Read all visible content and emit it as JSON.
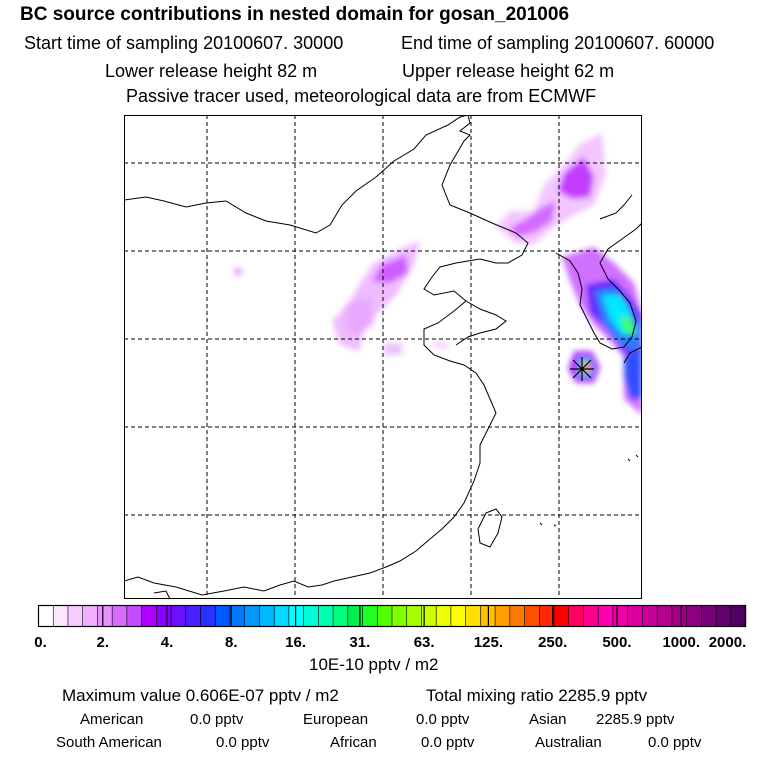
{
  "header": {
    "title": "BC  source contributions in nested domain for gosan_201006",
    "start_label": "Start time of sampling 20100607. 30000",
    "end_label": "End time of sampling 20100607. 60000",
    "lower_release": "Lower release height   82 m",
    "upper_release": "Upper release height   62 m",
    "note": "Passive tracer used, meteorological data are from ECMWF"
  },
  "colorbar": {
    "ticks": [
      "0.",
      "2.",
      "4.",
      "8.",
      "16.",
      "31.",
      "63.",
      "125.",
      "250.",
      "500.",
      "1000.",
      "2000."
    ],
    "colors": [
      "#ffffff",
      "#fbe6ff",
      "#f6ccff",
      "#f0b0ff",
      "#e890ff",
      "#d66dff",
      "#c44cff",
      "#b000ff",
      "#8a00ff",
      "#6a10ff",
      "#4a20ff",
      "#2a30ff",
      "#0058ff",
      "#0078ff",
      "#0098ff",
      "#00b8ff",
      "#00d8ff",
      "#00ffff",
      "#00ffd8",
      "#00ffb0",
      "#00ff80",
      "#00f050",
      "#20ff20",
      "#50ff00",
      "#80ff00",
      "#a8ff00",
      "#ccff00",
      "#eeff00",
      "#ffff00",
      "#ffe000",
      "#ffc000",
      "#ffa000",
      "#ff7a00",
      "#ff5000",
      "#ff2800",
      "#ff0000",
      "#ff0060",
      "#ff0090",
      "#ff00b0",
      "#ee00a8",
      "#dc00a0",
      "#c80098",
      "#b40090",
      "#a00088",
      "#8c0080",
      "#780078",
      "#64006c",
      "#500060"
    ],
    "unit_label": "10E-10 pptv / m2"
  },
  "summary": {
    "max_value": "Maximum value  0.606E-07 pptv / m2",
    "total_mixing": "Total mixing ratio     2285.9 pptv",
    "regions": [
      {
        "name": "American",
        "value": "0.0 pptv"
      },
      {
        "name": "European",
        "value": "0.0 pptv"
      },
      {
        "name": "Asian",
        "value": "2285.9 pptv"
      },
      {
        "name": "South American",
        "value": "0.0 pptv"
      },
      {
        "name": "African",
        "value": "0.0 pptv"
      },
      {
        "name": "Australian",
        "value": "0.0 pptv"
      }
    ]
  },
  "chart_data": {
    "type": "heatmap",
    "title": "BC  source contributions in nested domain for gosan_201006",
    "color_scale_ticks": [
      0,
      2,
      4,
      8,
      16,
      31,
      63,
      125,
      250,
      500,
      1000,
      2000
    ],
    "color_scale_unit": "10E-10 pptv / m2",
    "receptor_marker": "gosan",
    "colors": {
      "grid": "#000000",
      "coast": "#000000"
    }
  }
}
